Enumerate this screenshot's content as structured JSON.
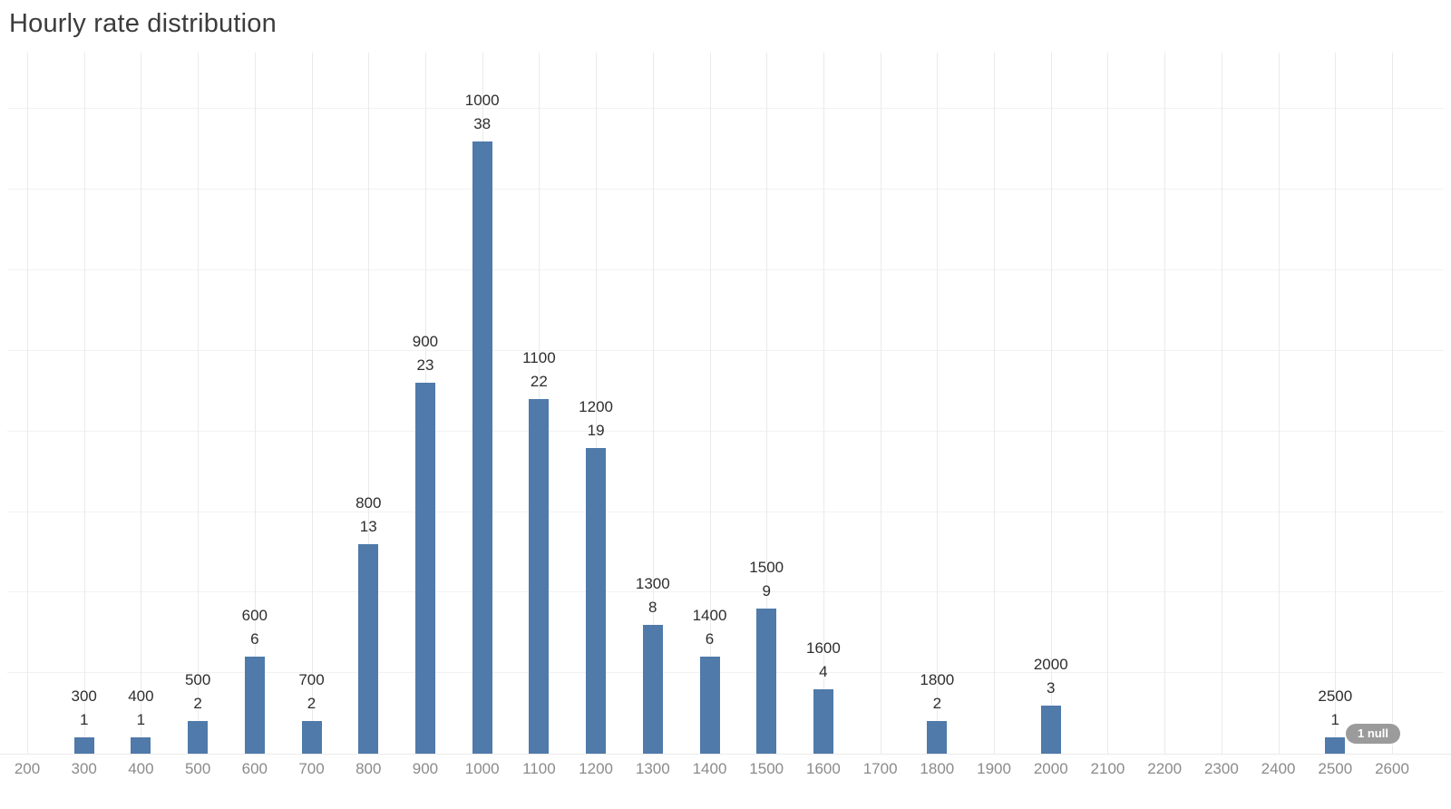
{
  "chart_data": {
    "type": "bar",
    "title": "Hourly rate distribution",
    "xlabel": "",
    "ylabel": "",
    "x_ticks": [
      200,
      300,
      400,
      500,
      600,
      700,
      800,
      900,
      1000,
      1100,
      1200,
      1300,
      1400,
      1500,
      1600,
      1700,
      1800,
      1900,
      2000,
      2100,
      2200,
      2300,
      2400,
      2500,
      2600
    ],
    "x_range": [
      200,
      2600
    ],
    "ylim": [
      0,
      40
    ],
    "y_gridline_step": 5,
    "grid": true,
    "legend": "none",
    "bars": [
      {
        "x": 300,
        "count": 1
      },
      {
        "x": 400,
        "count": 1
      },
      {
        "x": 500,
        "count": 2
      },
      {
        "x": 600,
        "count": 6
      },
      {
        "x": 700,
        "count": 2
      },
      {
        "x": 800,
        "count": 13
      },
      {
        "x": 900,
        "count": 23
      },
      {
        "x": 1000,
        "count": 38
      },
      {
        "x": 1100,
        "count": 22
      },
      {
        "x": 1200,
        "count": 19
      },
      {
        "x": 1300,
        "count": 8
      },
      {
        "x": 1400,
        "count": 6
      },
      {
        "x": 1500,
        "count": 9
      },
      {
        "x": 1600,
        "count": 4
      },
      {
        "x": 1800,
        "count": 2
      },
      {
        "x": 2000,
        "count": 3
      },
      {
        "x": 2500,
        "count": 1
      }
    ],
    "annotations": [
      "1 null"
    ]
  },
  "colors": {
    "background": "#ffffff",
    "bar": "#4f7aa9",
    "title_text": "#3c3c3c",
    "data_label_text": "#2e2e2e",
    "axis_tick_text": "#8b8b8b",
    "gridline_vertical": "#eaeaea",
    "gridline_horizontal": "#f2f2f2",
    "null_badge_bg": "#9b9b9b",
    "null_badge_text": "#ffffff"
  }
}
